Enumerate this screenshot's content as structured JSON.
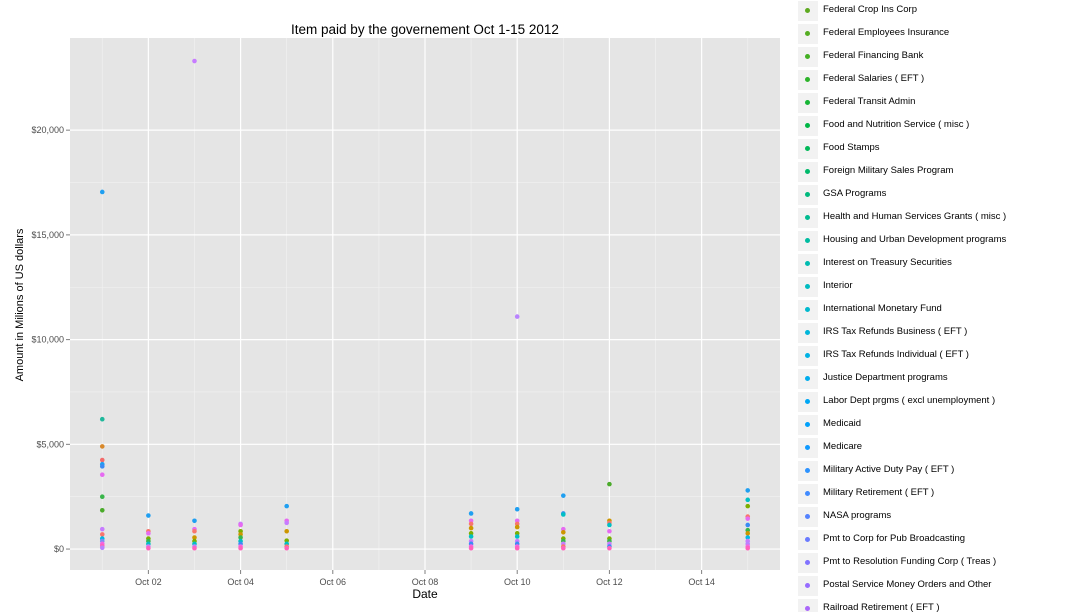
{
  "chart_data": {
    "type": "scatter",
    "title": "Item paid by the governement Oct 1-15 2012",
    "xlabel": "Date",
    "ylabel": "Amount in Milions of US dollars",
    "xlim": [
      0.3,
      15.7
    ],
    "ylim": [
      -1000,
      24400
    ],
    "grid": true,
    "legend_placement": "right",
    "x_ticks": [
      {
        "value": 2,
        "label": "Oct 02"
      },
      {
        "value": 4,
        "label": "Oct 04"
      },
      {
        "value": 6,
        "label": "Oct 06"
      },
      {
        "value": 8,
        "label": "Oct 08"
      },
      {
        "value": 10,
        "label": "Oct 10"
      },
      {
        "value": 12,
        "label": "Oct 12"
      },
      {
        "value": 14,
        "label": "Oct 14"
      }
    ],
    "y_ticks": [
      {
        "value": 0,
        "label": "$0"
      },
      {
        "value": 5000,
        "label": "$5,000"
      },
      {
        "value": 10000,
        "label": "$10,000"
      },
      {
        "value": 15000,
        "label": "$15,000"
      },
      {
        "value": 20000,
        "label": "$20,000"
      }
    ],
    "points": [
      {
        "x": 1,
        "y": 17050,
        "color": "#1f9ff1"
      },
      {
        "x": 1,
        "y": 6200,
        "color": "#1fb89b"
      },
      {
        "x": 1,
        "y": 4900,
        "color": "#d8882a"
      },
      {
        "x": 1,
        "y": 4250,
        "color": "#f36b6b"
      },
      {
        "x": 1,
        "y": 4050,
        "color": "#1f9ff1"
      },
      {
        "x": 1,
        "y": 3950,
        "color": "#3a8cf5"
      },
      {
        "x": 1,
        "y": 3550,
        "color": "#e66bf1"
      },
      {
        "x": 1,
        "y": 2500,
        "color": "#39b54a"
      },
      {
        "x": 1,
        "y": 1850,
        "color": "#4aab2a"
      },
      {
        "x": 1,
        "y": 950,
        "color": "#c77cff"
      },
      {
        "x": 1,
        "y": 700,
        "color": "#f8766d"
      },
      {
        "x": 1,
        "y": 500,
        "color": "#00b8e7"
      },
      {
        "x": 1,
        "y": 380,
        "color": "#7a90f5"
      },
      {
        "x": 1,
        "y": 250,
        "color": "#f564e3"
      },
      {
        "x": 1,
        "y": 150,
        "color": "#ff62bc"
      },
      {
        "x": 1,
        "y": 60,
        "color": "#b983ff"
      },
      {
        "x": 2,
        "y": 1600,
        "color": "#1f9ff1"
      },
      {
        "x": 2,
        "y": 850,
        "color": "#f8766d"
      },
      {
        "x": 2,
        "y": 750,
        "color": "#e66bf1"
      },
      {
        "x": 2,
        "y": 500,
        "color": "#7cae00"
      },
      {
        "x": 2,
        "y": 380,
        "color": "#39b54a"
      },
      {
        "x": 2,
        "y": 250,
        "color": "#00bfc4"
      },
      {
        "x": 2,
        "y": 120,
        "color": "#c77cff"
      },
      {
        "x": 2,
        "y": 40,
        "color": "#ff62bc"
      },
      {
        "x": 3,
        "y": 23300,
        "color": "#c77cff"
      },
      {
        "x": 3,
        "y": 1350,
        "color": "#1f9ff1"
      },
      {
        "x": 3,
        "y": 950,
        "color": "#e66bf1"
      },
      {
        "x": 3,
        "y": 850,
        "color": "#f8766d"
      },
      {
        "x": 3,
        "y": 550,
        "color": "#cd9600"
      },
      {
        "x": 3,
        "y": 380,
        "color": "#7cae00"
      },
      {
        "x": 3,
        "y": 250,
        "color": "#00bfc4"
      },
      {
        "x": 3,
        "y": 120,
        "color": "#b983ff"
      },
      {
        "x": 3,
        "y": 40,
        "color": "#ff62bc"
      },
      {
        "x": 4,
        "y": 1200,
        "color": "#c77cff"
      },
      {
        "x": 4,
        "y": 1150,
        "color": "#e66bf1"
      },
      {
        "x": 4,
        "y": 850,
        "color": "#7cae00"
      },
      {
        "x": 4,
        "y": 700,
        "color": "#cd9600"
      },
      {
        "x": 4,
        "y": 550,
        "color": "#39b54a"
      },
      {
        "x": 4,
        "y": 380,
        "color": "#00bfc4"
      },
      {
        "x": 4,
        "y": 250,
        "color": "#3a8cf5"
      },
      {
        "x": 4,
        "y": 120,
        "color": "#f564e3"
      },
      {
        "x": 4,
        "y": 40,
        "color": "#ff62bc"
      },
      {
        "x": 5,
        "y": 2050,
        "color": "#1f9ff1"
      },
      {
        "x": 5,
        "y": 1350,
        "color": "#e66bf1"
      },
      {
        "x": 5,
        "y": 1250,
        "color": "#c77cff"
      },
      {
        "x": 5,
        "y": 850,
        "color": "#cd9600"
      },
      {
        "x": 5,
        "y": 400,
        "color": "#7cae00"
      },
      {
        "x": 5,
        "y": 250,
        "color": "#00bfc4"
      },
      {
        "x": 5,
        "y": 120,
        "color": "#f8766d"
      },
      {
        "x": 5,
        "y": 40,
        "color": "#ff62bc"
      },
      {
        "x": 9,
        "y": 1700,
        "color": "#1f9ff1"
      },
      {
        "x": 9,
        "y": 1350,
        "color": "#e66bf1"
      },
      {
        "x": 9,
        "y": 1200,
        "color": "#f8766d"
      },
      {
        "x": 9,
        "y": 1000,
        "color": "#cd9600"
      },
      {
        "x": 9,
        "y": 750,
        "color": "#7cae00"
      },
      {
        "x": 9,
        "y": 600,
        "color": "#00bfc4"
      },
      {
        "x": 9,
        "y": 380,
        "color": "#c77cff"
      },
      {
        "x": 9,
        "y": 250,
        "color": "#3a8cf5"
      },
      {
        "x": 9,
        "y": 120,
        "color": "#f564e3"
      },
      {
        "x": 9,
        "y": 40,
        "color": "#ff62bc"
      },
      {
        "x": 10,
        "y": 11100,
        "color": "#b983ff"
      },
      {
        "x": 10,
        "y": 1900,
        "color": "#1f9ff1"
      },
      {
        "x": 10,
        "y": 1350,
        "color": "#e66bf1"
      },
      {
        "x": 10,
        "y": 1200,
        "color": "#f8766d"
      },
      {
        "x": 10,
        "y": 1050,
        "color": "#cd9600"
      },
      {
        "x": 10,
        "y": 750,
        "color": "#7cae00"
      },
      {
        "x": 10,
        "y": 600,
        "color": "#00bfc4"
      },
      {
        "x": 10,
        "y": 380,
        "color": "#c77cff"
      },
      {
        "x": 10,
        "y": 250,
        "color": "#3a8cf5"
      },
      {
        "x": 10,
        "y": 120,
        "color": "#f564e3"
      },
      {
        "x": 10,
        "y": 40,
        "color": "#ff62bc"
      },
      {
        "x": 11,
        "y": 2550,
        "color": "#1f9ff1"
      },
      {
        "x": 11,
        "y": 1700,
        "color": "#3a8cf5"
      },
      {
        "x": 11,
        "y": 1650,
        "color": "#00bfc4"
      },
      {
        "x": 11,
        "y": 950,
        "color": "#e66bf1"
      },
      {
        "x": 11,
        "y": 800,
        "color": "#cd9600"
      },
      {
        "x": 11,
        "y": 500,
        "color": "#7cae00"
      },
      {
        "x": 11,
        "y": 380,
        "color": "#39b54a"
      },
      {
        "x": 11,
        "y": 250,
        "color": "#c77cff"
      },
      {
        "x": 11,
        "y": 120,
        "color": "#f8766d"
      },
      {
        "x": 11,
        "y": 40,
        "color": "#ff62bc"
      },
      {
        "x": 12,
        "y": 3100,
        "color": "#4aab2a"
      },
      {
        "x": 12,
        "y": 1350,
        "color": "#cd9600"
      },
      {
        "x": 12,
        "y": 1250,
        "color": "#f8766d"
      },
      {
        "x": 12,
        "y": 1150,
        "color": "#00bfc4"
      },
      {
        "x": 12,
        "y": 850,
        "color": "#e66bf1"
      },
      {
        "x": 12,
        "y": 500,
        "color": "#7cae00"
      },
      {
        "x": 12,
        "y": 380,
        "color": "#39b54a"
      },
      {
        "x": 12,
        "y": 250,
        "color": "#c77cff"
      },
      {
        "x": 12,
        "y": 120,
        "color": "#3a8cf5"
      },
      {
        "x": 12,
        "y": 40,
        "color": "#ff62bc"
      },
      {
        "x": 15,
        "y": 2800,
        "color": "#1f9ff1"
      },
      {
        "x": 15,
        "y": 2350,
        "color": "#00bfc4"
      },
      {
        "x": 15,
        "y": 2050,
        "color": "#7cae00"
      },
      {
        "x": 15,
        "y": 1550,
        "color": "#f8766d"
      },
      {
        "x": 15,
        "y": 1450,
        "color": "#e66bf1"
      },
      {
        "x": 15,
        "y": 1150,
        "color": "#3a8cf5"
      },
      {
        "x": 15,
        "y": 900,
        "color": "#39b54a"
      },
      {
        "x": 15,
        "y": 750,
        "color": "#cd9600"
      },
      {
        "x": 15,
        "y": 550,
        "color": "#00b8e7"
      },
      {
        "x": 15,
        "y": 380,
        "color": "#c77cff"
      },
      {
        "x": 15,
        "y": 250,
        "color": "#b983ff"
      },
      {
        "x": 15,
        "y": 120,
        "color": "#f564e3"
      },
      {
        "x": 15,
        "y": 40,
        "color": "#ff62bc"
      }
    ],
    "legend": [
      {
        "label": "Federal Crop Ins Corp",
        "color": "#5eaa20"
      },
      {
        "label": "Federal Employees Insurance",
        "color": "#55ad22"
      },
      {
        "label": "Federal Financing Bank",
        "color": "#44b024"
      },
      {
        "label": "Federal Salaries ( EFT )",
        "color": "#2db32a"
      },
      {
        "label": "Federal Transit Admin",
        "color": "#17b536"
      },
      {
        "label": "Food and Nutrition Service ( misc )",
        "color": "#00b746"
      },
      {
        "label": "Food Stamps",
        "color": "#00b858"
      },
      {
        "label": "Foreign Military Sales Program",
        "color": "#00b96b"
      },
      {
        "label": "GSA Programs",
        "color": "#00ba7e"
      },
      {
        "label": "Health and Human Services Grants ( misc )",
        "color": "#00bb90"
      },
      {
        "label": "Housing and Urban Development programs",
        "color": "#00bca1"
      },
      {
        "label": "Interest on Treasury Securities",
        "color": "#00bcb1"
      },
      {
        "label": "Interior",
        "color": "#00bbc0"
      },
      {
        "label": "International Monetary Fund",
        "color": "#00b9ce"
      },
      {
        "label": "IRS Tax Refunds Business ( EFT )",
        "color": "#00b6da"
      },
      {
        "label": "IRS Tax Refunds Individual ( EFT )",
        "color": "#00b2e4"
      },
      {
        "label": "Justice Department programs",
        "color": "#00adee"
      },
      {
        "label": "Labor Dept prgms ( excl unemployment )",
        "color": "#00a7f5"
      },
      {
        "label": "Medicaid",
        "color": "#00a1fb"
      },
      {
        "label": "Medicare",
        "color": "#109aff"
      },
      {
        "label": "Military Active Duty Pay ( EFT )",
        "color": "#2d93ff"
      },
      {
        "label": "Military Retirement ( EFT )",
        "color": "#418bff"
      },
      {
        "label": "NASA programs",
        "color": "#5483ff"
      },
      {
        "label": "Pmt to Corp for Pub Broadcasting",
        "color": "#6a7bff"
      },
      {
        "label": "Pmt to Resolution Funding Corp ( Treas )",
        "color": "#8173ff"
      },
      {
        "label": "Postal Service Money Orders and Other",
        "color": "#976cff"
      },
      {
        "label": "Railroad Retirement ( EFT )",
        "color": "#aa67fa"
      }
    ]
  }
}
